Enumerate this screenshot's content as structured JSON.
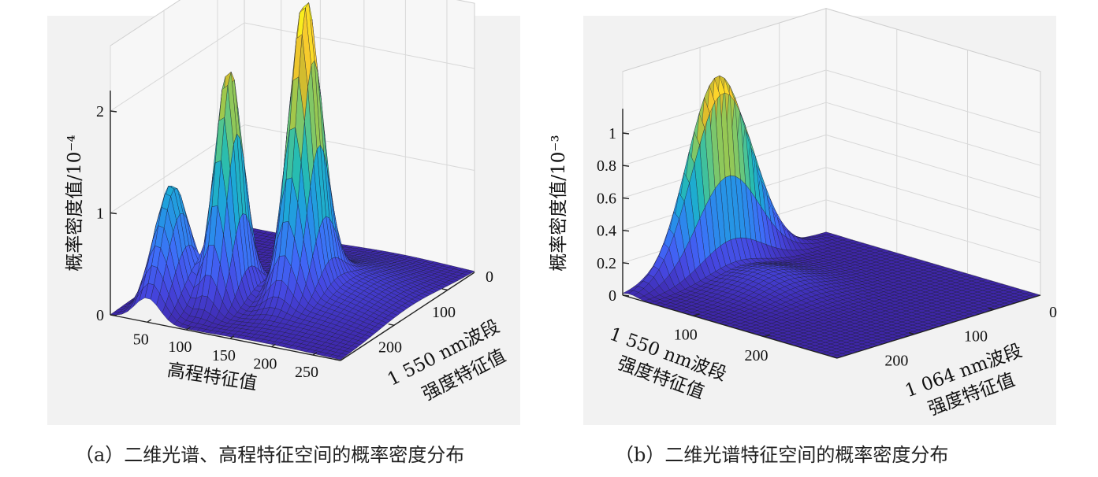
{
  "captions": {
    "a": "（a）二维光谱、高程特征空间的概率密度分布",
    "b": "（b）二维光谱特征空间的概率密度分布"
  },
  "colormap": [
    "#3e26a8",
    "#4547e0",
    "#3f6bf9",
    "#2a8ceb",
    "#1ca9d6",
    "#27bcb1",
    "#5cc787",
    "#9fc84c",
    "#dbba2a",
    "#fcce2e",
    "#f9fb15"
  ],
  "chart_data": [
    {
      "type": "surface",
      "panel": "a",
      "xlabel": "高程特征值",
      "ylabel": "1 550 nm波段强度特征值",
      "zlabel": "概率密度值/10⁻⁴",
      "xticks": [
        "50",
        "100",
        "150",
        "200",
        "250"
      ],
      "yticks": [
        "0",
        "100",
        "200"
      ],
      "zticks": [
        "0",
        "1",
        "2"
      ],
      "xlim": [
        0,
        280
      ],
      "ylim": [
        0,
        250
      ],
      "zlim": [
        0,
        2.2
      ],
      "peaks": [
        {
          "x": 45,
          "y": 205,
          "z": 1.2
        },
        {
          "x": 95,
          "y": 175,
          "z": 2.3
        },
        {
          "x": 165,
          "y": 140,
          "z": 2.8
        },
        {
          "x": 190,
          "y": 120,
          "z": 0.25
        }
      ]
    },
    {
      "type": "surface",
      "panel": "b",
      "xlabel": "1 550 nm波段强度特征值",
      "ylabel": "1 064 nm波段强度特征值",
      "zlabel": "概率密度值/10⁻³",
      "xticks": [
        "100",
        "200"
      ],
      "yticks": [
        "0",
        "100",
        "200"
      ],
      "zticks": [
        "0",
        "0.2",
        "0.4",
        "0.6",
        "0.8",
        "1"
      ],
      "xlim": [
        0,
        300
      ],
      "ylim": [
        0,
        260
      ],
      "zlim": [
        0,
        1.15
      ],
      "peaks": [
        {
          "x": 10,
          "y": 145,
          "z": 1.2
        },
        {
          "x": 80,
          "y": 150,
          "z": 0.1
        }
      ]
    }
  ]
}
